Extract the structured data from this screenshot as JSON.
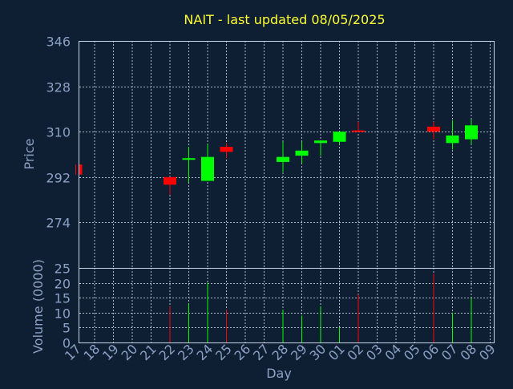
{
  "chart_data": {
    "type": "candlestick",
    "title": "NAIT - last updated 08/05/2025",
    "xlabel": "Day",
    "price_panel": {
      "ylabel": "Price",
      "yticks": [
        274,
        292,
        310,
        328,
        346
      ],
      "ylim": [
        256,
        346
      ],
      "grid": true
    },
    "volume_panel": {
      "ylabel": "Volume (0000)",
      "yticks": [
        0,
        5,
        10,
        15,
        20,
        25
      ],
      "ylim": [
        0,
        25
      ],
      "grid": true
    },
    "x_tick_labels": [
      "17",
      "18",
      "19",
      "20",
      "21",
      "22",
      "23",
      "24",
      "25",
      "26",
      "27",
      "28",
      "29",
      "30",
      "01",
      "02",
      "03",
      "04",
      "05",
      "06",
      "07",
      "08",
      "09"
    ],
    "colors": {
      "up": "#00ff00",
      "down": "#ff0000",
      "title": "#ffff33",
      "axis_text": "#8aa0c4",
      "background": "#0f1f33",
      "grid": "#c8d4e6"
    },
    "candles": [
      {
        "day": "17",
        "open": 297,
        "high": 297,
        "low": 293,
        "close": 293,
        "volume": 0
      },
      {
        "day": "22",
        "open": 292,
        "high": 292,
        "low": 285,
        "close": 289,
        "volume": 12
      },
      {
        "day": "23",
        "open": 299,
        "high": 304,
        "low": 290,
        "close": 299.5,
        "volume": 13
      },
      {
        "day": "24",
        "open": 290.5,
        "high": 305,
        "low": 290.5,
        "close": 300,
        "volume": 20
      },
      {
        "day": "25",
        "open": 304,
        "high": 305.5,
        "low": 299.5,
        "close": 302,
        "volume": 11
      },
      {
        "day": "28",
        "open": 298,
        "high": 306,
        "low": 294,
        "close": 300,
        "volume": 11
      },
      {
        "day": "29",
        "open": 300.5,
        "high": 306,
        "low": 297.5,
        "close": 302.5,
        "volume": 9
      },
      {
        "day": "30",
        "open": 305.5,
        "high": 306.5,
        "low": 300.5,
        "close": 306.5,
        "volume": 12
      },
      {
        "day": "01",
        "open": 306,
        "high": 310,
        "low": 305,
        "close": 310,
        "volume": 5
      },
      {
        "day": "02",
        "open": 310.5,
        "high": 314,
        "low": 310,
        "close": 310,
        "volume": 16
      },
      {
        "day": "06",
        "open": 312,
        "high": 314,
        "low": 307,
        "close": 310,
        "volume": 23
      },
      {
        "day": "07",
        "open": 305.5,
        "high": 314.5,
        "low": 303,
        "close": 308.5,
        "volume": 10
      },
      {
        "day": "08",
        "open": 307,
        "high": 315,
        "low": 305,
        "close": 312.5,
        "volume": 15
      }
    ]
  }
}
